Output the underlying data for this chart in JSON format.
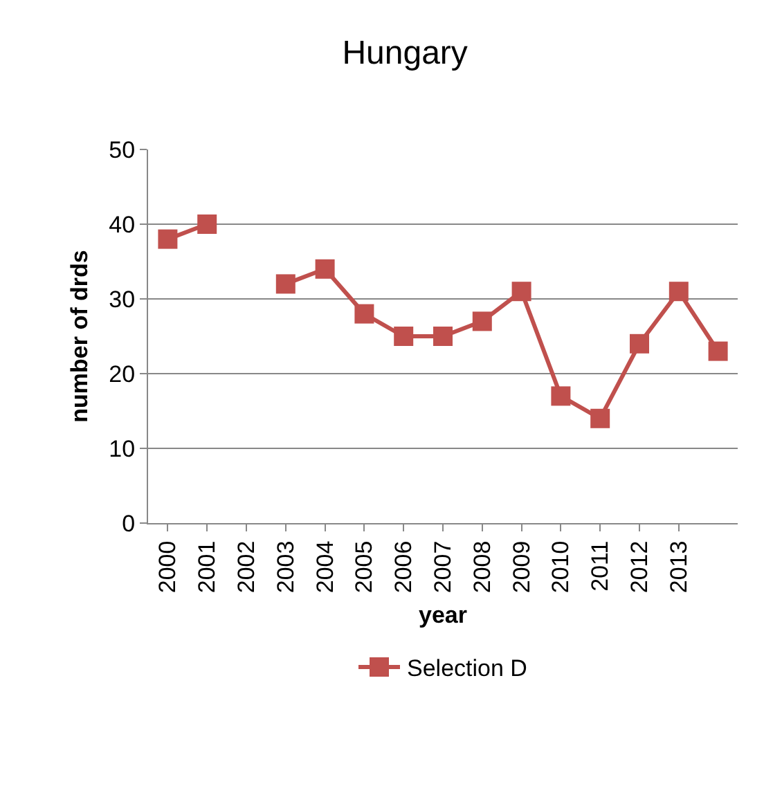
{
  "chart_data": {
    "type": "line",
    "title": "Hungary",
    "xlabel": "year",
    "ylabel": "number of drds",
    "categories": [
      "2000",
      "2001",
      "2002",
      "2003",
      "2004",
      "2005",
      "2006",
      "2007",
      "2008",
      "2009",
      "2010",
      "2011",
      "2012",
      "2013",
      null
    ],
    "series": [
      {
        "name": "Selection D",
        "color": "#c0504d",
        "values": [
          38,
          40,
          null,
          32,
          34,
          28,
          25,
          25,
          27,
          31,
          17,
          14,
          24,
          31,
          23
        ]
      }
    ],
    "ylim": [
      0,
      50
    ],
    "yticks": [
      0,
      10,
      20,
      30,
      40,
      50
    ],
    "grid": "y",
    "legend": "bottom",
    "marker": "square",
    "line_style": "solid"
  }
}
